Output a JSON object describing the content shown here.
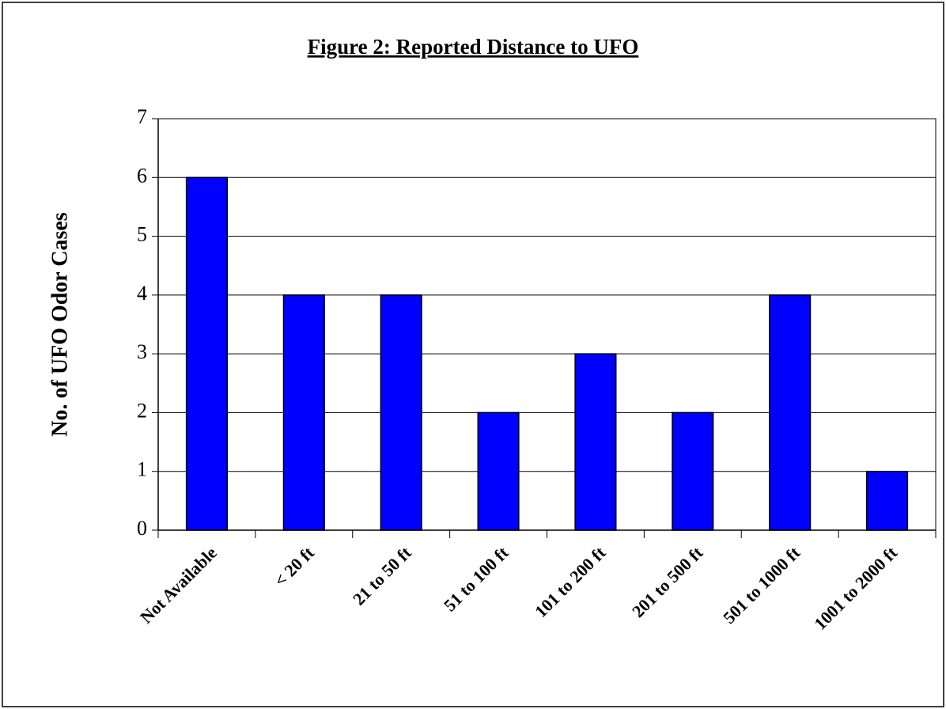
{
  "chart_data": {
    "type": "bar",
    "title": "Figure 2: Reported Distance to UFO",
    "y_label": "No. of UFO Odor Cases",
    "categories": [
      "Not Available",
      "< 20 ft",
      "21 to 50 ft",
      "51 to 100 ft",
      "101 to 200 ft",
      "201 to 500 ft",
      "501 to 1000 ft",
      "1001 to 2000 ft"
    ],
    "values": [
      6,
      4,
      4,
      2,
      3,
      2,
      4,
      1
    ],
    "color": "#0000ff",
    "ylim": [
      0,
      7
    ],
    "yticks": [
      0,
      1,
      2,
      3,
      4,
      5,
      6,
      7
    ],
    "grid": true
  }
}
